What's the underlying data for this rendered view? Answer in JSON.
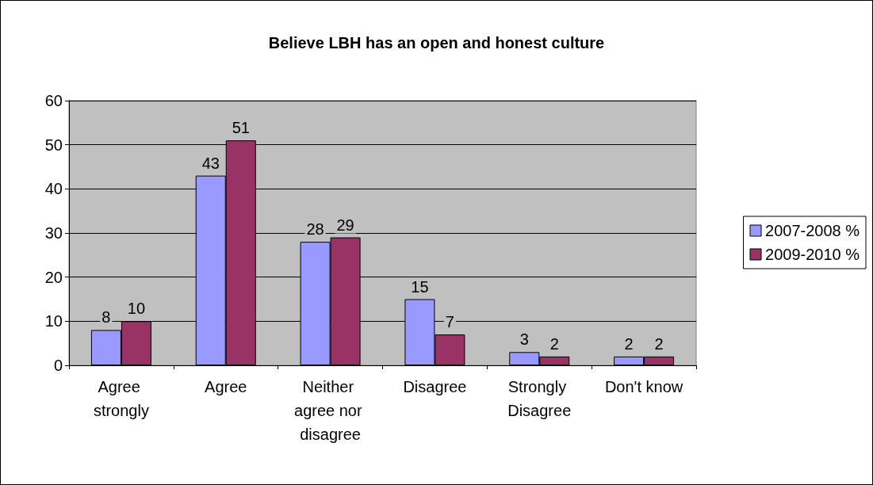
{
  "chart_data": {
    "type": "bar",
    "title": "Believe LBH has an open and honest culture",
    "categories": [
      "Agree strongly",
      "Agree",
      "Neither agree nor disagree",
      "Disagree",
      "Strongly Disagree",
      "Don't know"
    ],
    "series": [
      {
        "name": "2007-2008 %",
        "color": "#9999ff",
        "values": [
          8,
          43,
          28,
          15,
          3,
          2
        ]
      },
      {
        "name": "2009-2010 %",
        "color": "#993366",
        "values": [
          10,
          51,
          29,
          7,
          2,
          2
        ]
      }
    ],
    "ylim": [
      0,
      60
    ],
    "yticks": [
      0,
      10,
      20,
      30,
      40,
      50,
      60
    ],
    "grid": "y",
    "legend": "right",
    "data_labels": true
  }
}
